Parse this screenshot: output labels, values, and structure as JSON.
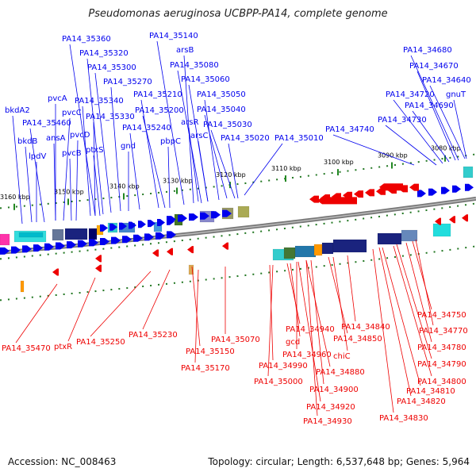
{
  "title": "Pseudomonas aeruginosa UCBPP-PA14, complete genome",
  "footer": {
    "accession": "Accession: NC_008463",
    "topology": "Topology: circular; Length: 6,537,648 bp; Genes: 5,964"
  },
  "colors": {
    "forward": "#0000ee",
    "reverse": "#ee0000",
    "backbone": "#888888",
    "tick": "#228822"
  },
  "ruler": [
    {
      "label": "3160 kbp"
    },
    {
      "label": "3150 kbp"
    },
    {
      "label": "3140 kbp"
    },
    {
      "label": "3130 kbp"
    },
    {
      "label": "3120 kbp"
    },
    {
      "label": "3110 kbp"
    },
    {
      "label": "3100 kbp"
    },
    {
      "label": "3090 kbp"
    },
    {
      "label": "3080 kbp"
    }
  ],
  "top_labels": [
    {
      "text": "PA14_35360"
    },
    {
      "text": "PA14_35320"
    },
    {
      "text": "PA14_35300"
    },
    {
      "text": "PA14_35270"
    },
    {
      "text": "PA14_35210"
    },
    {
      "text": "PA14_35340"
    },
    {
      "text": "PA14_35200"
    },
    {
      "text": "PA14_35330"
    },
    {
      "text": "PA14_35240"
    },
    {
      "text": "bkdA2"
    },
    {
      "text": "PA14_35460"
    },
    {
      "text": "pvcA"
    },
    {
      "text": "pvcC"
    },
    {
      "text": "pvcD"
    },
    {
      "text": "ansA"
    },
    {
      "text": "bkdB"
    },
    {
      "text": "pvcB"
    },
    {
      "text": "ptxS"
    },
    {
      "text": "lpdV"
    },
    {
      "text": "gnd"
    },
    {
      "text": "pbpC"
    },
    {
      "text": "PA14_35140"
    },
    {
      "text": "arsB"
    },
    {
      "text": "PA14_35080"
    },
    {
      "text": "PA14_35060"
    },
    {
      "text": "PA14_35050"
    },
    {
      "text": "PA14_35040"
    },
    {
      "text": "arsR"
    },
    {
      "text": "PA14_35030"
    },
    {
      "text": "arsC"
    },
    {
      "text": "PA14_35020"
    },
    {
      "text": "PA14_35010"
    },
    {
      "text": "PA14_34740"
    },
    {
      "text": "PA14_34680"
    },
    {
      "text": "PA14_34670"
    },
    {
      "text": "PA14_34640"
    },
    {
      "text": "PA14_34720"
    },
    {
      "text": "gnuT"
    },
    {
      "text": "PA14_34690"
    },
    {
      "text": "PA14_34730"
    }
  ],
  "bottom_labels": [
    {
      "text": "PA14_35470"
    },
    {
      "text": "ptxR"
    },
    {
      "text": "PA14_35250"
    },
    {
      "text": "PA14_35230"
    },
    {
      "text": "PA14_35150"
    },
    {
      "text": "PA14_35070"
    },
    {
      "text": "PA14_35170"
    },
    {
      "text": "PA14_34940"
    },
    {
      "text": "PA14_34840"
    },
    {
      "text": "gcd"
    },
    {
      "text": "PA14_34850"
    },
    {
      "text": "PA14_34960"
    },
    {
      "text": "chiC"
    },
    {
      "text": "PA14_34990"
    },
    {
      "text": "PA14_34880"
    },
    {
      "text": "PA14_35000"
    },
    {
      "text": "PA14_34900"
    },
    {
      "text": "PA14_34920"
    },
    {
      "text": "PA14_34930"
    },
    {
      "text": "PA14_34750"
    },
    {
      "text": "PA14_34770"
    },
    {
      "text": "PA14_34780"
    },
    {
      "text": "PA14_34790"
    },
    {
      "text": "PA14_34800"
    },
    {
      "text": "PA14_34810"
    },
    {
      "text": "PA14_34820"
    },
    {
      "text": "PA14_34830"
    }
  ]
}
